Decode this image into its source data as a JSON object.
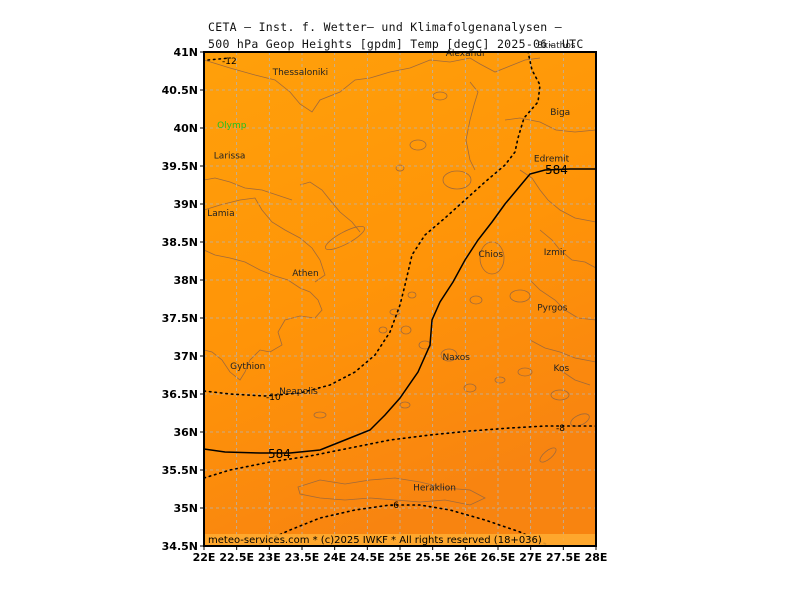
{
  "title": {
    "line1": "CETA – Inst. f. Wetter– und Klimafolgenanalysen –",
    "line2": "500 hPa Geop Heights [gpdm] Temp [degC] 2025-06-  UTC"
  },
  "axes": {
    "lat_labels": [
      "41N",
      "40.5N",
      "40N",
      "39.5N",
      "39N",
      "38.5N",
      "38N",
      "37.5N",
      "37N",
      "36.5N",
      "36N",
      "35.5N",
      "35N",
      "34.5N"
    ],
    "lon_labels": [
      "22E",
      "22.5E",
      "23E",
      "23.5E",
      "24E",
      "24.5E",
      "25E",
      "25.5E",
      "26E",
      "26.5E",
      "27E",
      "27.5E",
      "28E"
    ]
  },
  "places": [
    {
      "name": "Thessaloniki",
      "lon": 23.05,
      "lat": 40.7
    },
    {
      "name": "Alexandr",
      "lon": 25.7,
      "lat": 40.95
    },
    {
      "name": "Skiathos",
      "lon": 27.1,
      "lat": 41.05
    },
    {
      "name": "Olymp",
      "lon": 22.2,
      "lat": 40.0,
      "color": "#22c022"
    },
    {
      "name": "Biga",
      "lon": 27.3,
      "lat": 40.17
    },
    {
      "name": "Larissa",
      "lon": 22.15,
      "lat": 39.6
    },
    {
      "name": "Edremit",
      "lon": 27.05,
      "lat": 39.56
    },
    {
      "name": "Lamia",
      "lon": 22.05,
      "lat": 38.84
    },
    {
      "name": "Athen",
      "lon": 23.35,
      "lat": 38.05
    },
    {
      "name": "Chios",
      "lon": 26.2,
      "lat": 38.3
    },
    {
      "name": "Izmir",
      "lon": 27.2,
      "lat": 38.33
    },
    {
      "name": "Pyrgos",
      "lon": 27.1,
      "lat": 37.6
    },
    {
      "name": "Naxos",
      "lon": 25.65,
      "lat": 36.95
    },
    {
      "name": "Kos",
      "lon": 27.35,
      "lat": 36.8
    },
    {
      "name": "Gythion",
      "lon": 22.4,
      "lat": 36.83
    },
    {
      "name": "Neapolis",
      "lon": 23.15,
      "lat": 36.5
    },
    {
      "name": "Heraklion",
      "lon": 25.2,
      "lat": 35.23
    }
  ],
  "contours": {
    "height_label": "584",
    "temp_labels": [
      "-12",
      "-10",
      "-8",
      "-6"
    ]
  },
  "footer": "meteo-services.com * (c)2025 IWKF * All rights reserved (18+036)",
  "colors": {
    "sea": "#ff9a05",
    "coast": "#a06a3c",
    "grid": "#b5b5b5"
  }
}
